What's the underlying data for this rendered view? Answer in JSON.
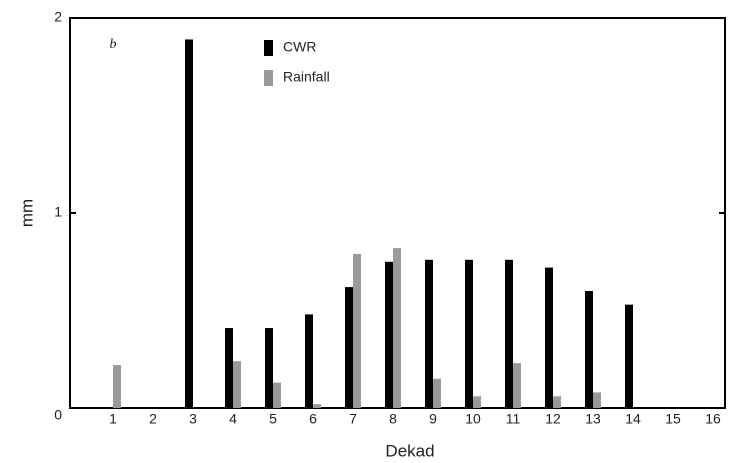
{
  "chart_data": {
    "type": "bar",
    "x_label": "Dekad",
    "y_label": "mm",
    "annotation": "b",
    "categories": [
      "1",
      "2",
      "3",
      "4",
      "5",
      "6",
      "7",
      "8",
      "9",
      "10",
      "11",
      "12",
      "13",
      "14",
      "15",
      "16"
    ],
    "series": [
      {
        "name": "CWR",
        "color": "#000000",
        "values": [
          null,
          null,
          1.89,
          0.41,
          0.41,
          0.48,
          0.62,
          0.75,
          0.76,
          0.76,
          0.76,
          0.72,
          0.6,
          0.53,
          null,
          null
        ]
      },
      {
        "name": "Rainfall",
        "color": "#999999",
        "values": [
          0.22,
          null,
          null,
          0.24,
          0.13,
          0.02,
          0.79,
          0.82,
          0.15,
          0.06,
          0.23,
          0.06,
          0.08,
          null,
          null,
          null
        ]
      }
    ],
    "ylim": [
      0,
      2
    ],
    "yticks": [
      0,
      1,
      2
    ],
    "grid": false,
    "legend": "top"
  }
}
